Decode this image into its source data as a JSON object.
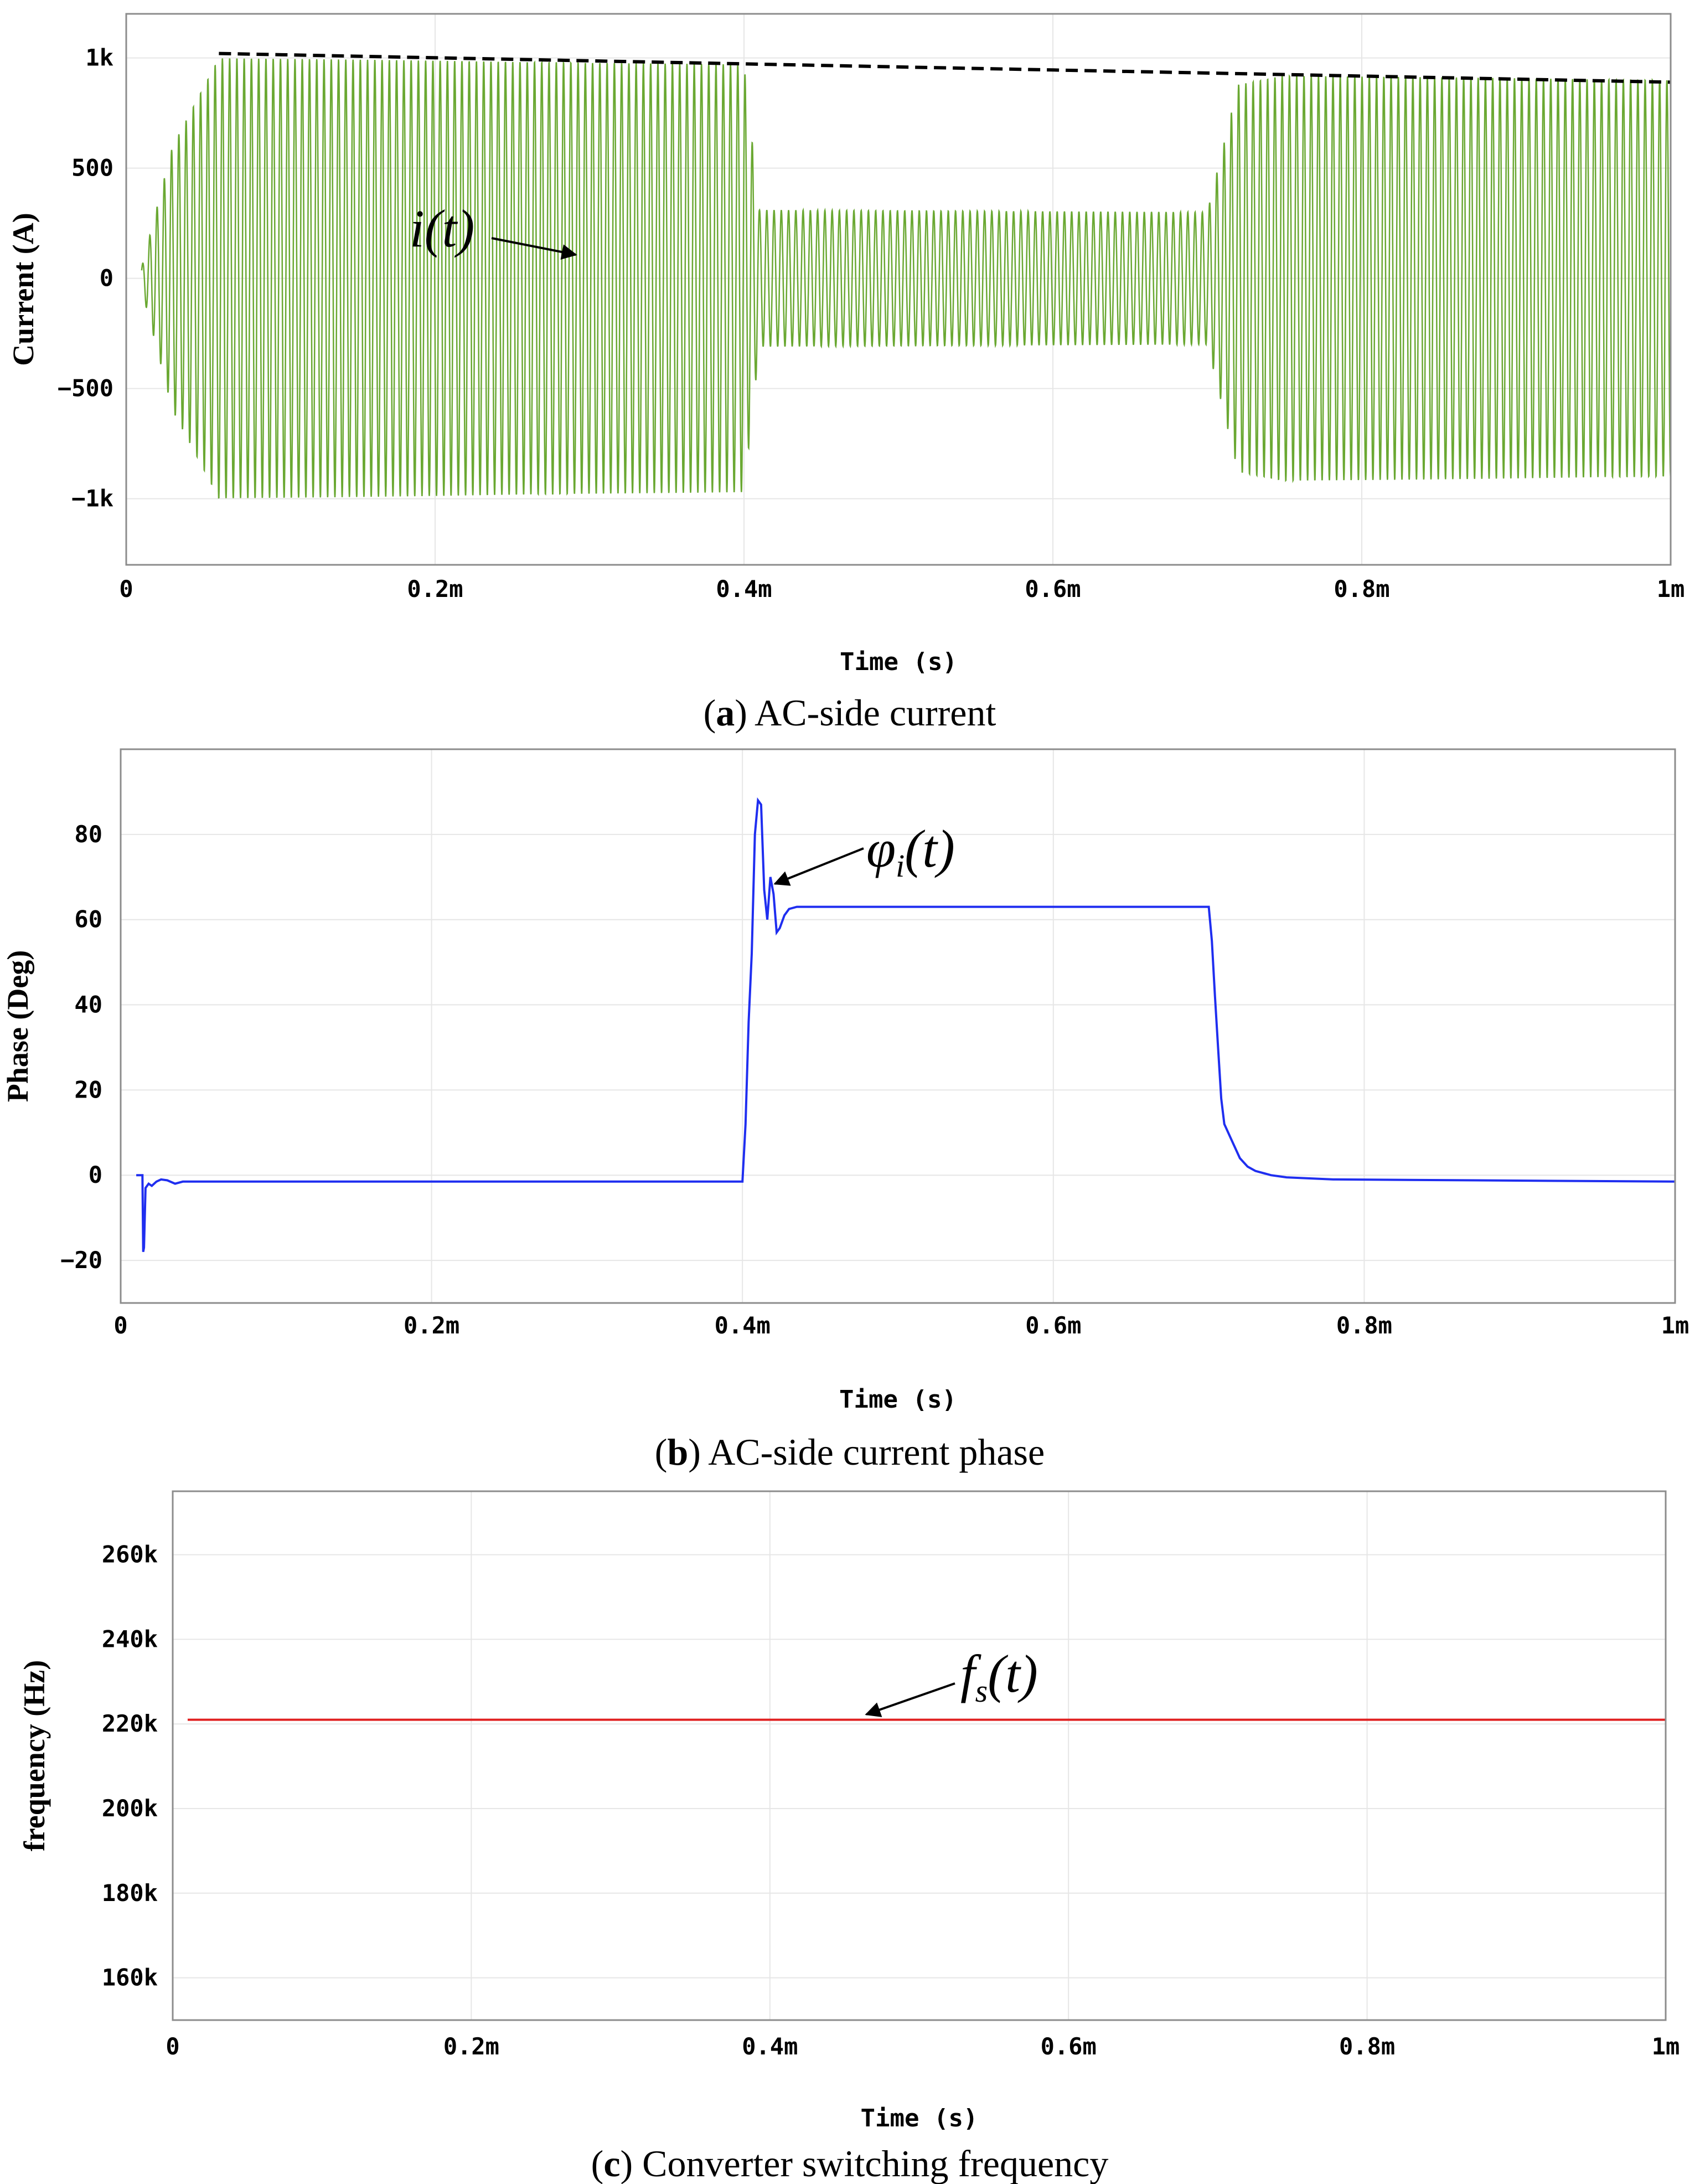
{
  "chart_data": [
    {
      "type": "line",
      "caption_letter": "a",
      "caption_text": "AC-side current",
      "xlabel": "Time (s)",
      "ylabel": "Current (A)",
      "xlim": [
        0,
        0.001
      ],
      "ylim": [
        -1300,
        1200
      ],
      "x_ticks": [
        0,
        0.0002,
        0.0004,
        0.0006,
        0.0008,
        0.001
      ],
      "x_tick_labels": [
        "0",
        "0.2m",
        "0.4m",
        "0.6m",
        "0.8m",
        "1m"
      ],
      "y_ticks": [
        1000,
        500,
        0,
        -500,
        -1000
      ],
      "y_tick_labels": [
        "1k",
        "500",
        "0",
        "−500",
        "−1k"
      ],
      "grid": true,
      "series": [
        {
          "color": "#6aa832",
          "kind": "oscillation",
          "envelope_x": [
            1e-05,
            3e-05,
            6e-05,
            0.0004,
            0.00041,
            0.0007,
            0.00072,
            0.00075,
            0.001
          ],
          "envelope_amp": [
            50,
            600,
            1000,
            970,
            310,
            300,
            880,
            920,
            900
          ]
        },
        {
          "color": "#000000",
          "dashed": true,
          "x": [
            6e-05,
            0.001
          ],
          "values": [
            1020,
            890
          ]
        }
      ],
      "annotation": {
        "text": "i(t)",
        "x": 0.0003,
        "y": 80
      }
    },
    {
      "type": "line",
      "caption_letter": "b",
      "caption_text": "AC-side current phase",
      "xlabel": "Time (s)",
      "ylabel": "Phase (Deg)",
      "xlim": [
        0,
        0.001
      ],
      "ylim": [
        -30,
        100
      ],
      "x_ticks": [
        0,
        0.0002,
        0.0004,
        0.0006,
        0.0008,
        0.001
      ],
      "x_tick_labels": [
        "0",
        "0.2m",
        "0.4m",
        "0.6m",
        "0.8m",
        "1m"
      ],
      "y_ticks": [
        80,
        60,
        40,
        20,
        0,
        -20
      ],
      "y_tick_labels": [
        "80",
        "60",
        "40",
        "20",
        "0",
        "−20"
      ],
      "grid": true,
      "series": [
        {
          "color": "#1f2ef0",
          "x": [
            1e-05,
            1.4e-05,
            1.45e-05,
            1.5e-05,
            1.6e-05,
            1.8e-05,
            2e-05,
            2.3e-05,
            2.6e-05,
            3e-05,
            3.5e-05,
            4e-05,
            5e-05,
            0.0004,
            0.000402,
            0.000404,
            0.000406,
            0.000408,
            0.00041,
            0.000412,
            0.000414,
            0.000416,
            0.000418,
            0.00042,
            0.000422,
            0.000424,
            0.000427,
            0.00043,
            0.000435,
            0.00044,
            0.00045,
            0.0007,
            0.000702,
            0.000704,
            0.000706,
            0.000708,
            0.00071,
            0.000715,
            0.00072,
            0.000725,
            0.00073,
            0.00074,
            0.00075,
            0.00078,
            0.001
          ],
          "values": [
            0,
            0,
            -18,
            -17,
            -3,
            -2,
            -2.5,
            -1.5,
            -1,
            -1.2,
            -2,
            -1.5,
            -1.5,
            -1.5,
            12,
            36,
            52,
            80,
            88,
            87,
            67,
            60,
            70,
            66,
            57,
            58,
            61,
            62.5,
            63,
            63,
            63,
            63,
            55,
            42,
            30,
            18,
            12,
            8,
            4,
            2,
            1,
            0,
            -0.5,
            -1,
            -1.5
          ]
        }
      ],
      "annotation": {
        "text": "φ",
        "sub": "i",
        "after": "(t)",
        "x": 0.00048,
        "y": 78
      }
    },
    {
      "type": "line",
      "caption_letter": "c",
      "caption_text": "Converter switching frequency",
      "xlabel": "Time (s)",
      "ylabel": "frequency (Hz)",
      "xlim": [
        0,
        0.001
      ],
      "ylim": [
        150000,
        275000
      ],
      "x_ticks": [
        0,
        0.0002,
        0.0004,
        0.0006,
        0.0008,
        0.001
      ],
      "x_tick_labels": [
        "0",
        "0.2m",
        "0.4m",
        "0.6m",
        "0.8m",
        "1m"
      ],
      "y_ticks": [
        260000,
        240000,
        220000,
        200000,
        180000,
        160000
      ],
      "y_tick_labels": [
        "260k",
        "240k",
        "220k",
        "200k",
        "180k",
        "160k"
      ],
      "grid": true,
      "series": [
        {
          "color": "#e02020",
          "x": [
            1e-05,
            0.001
          ],
          "values": [
            221000,
            221000
          ]
        }
      ],
      "annotation": {
        "text": "f",
        "sub": "s",
        "after": "(t)",
        "x": 0.00053,
        "y": 231000
      }
    }
  ]
}
